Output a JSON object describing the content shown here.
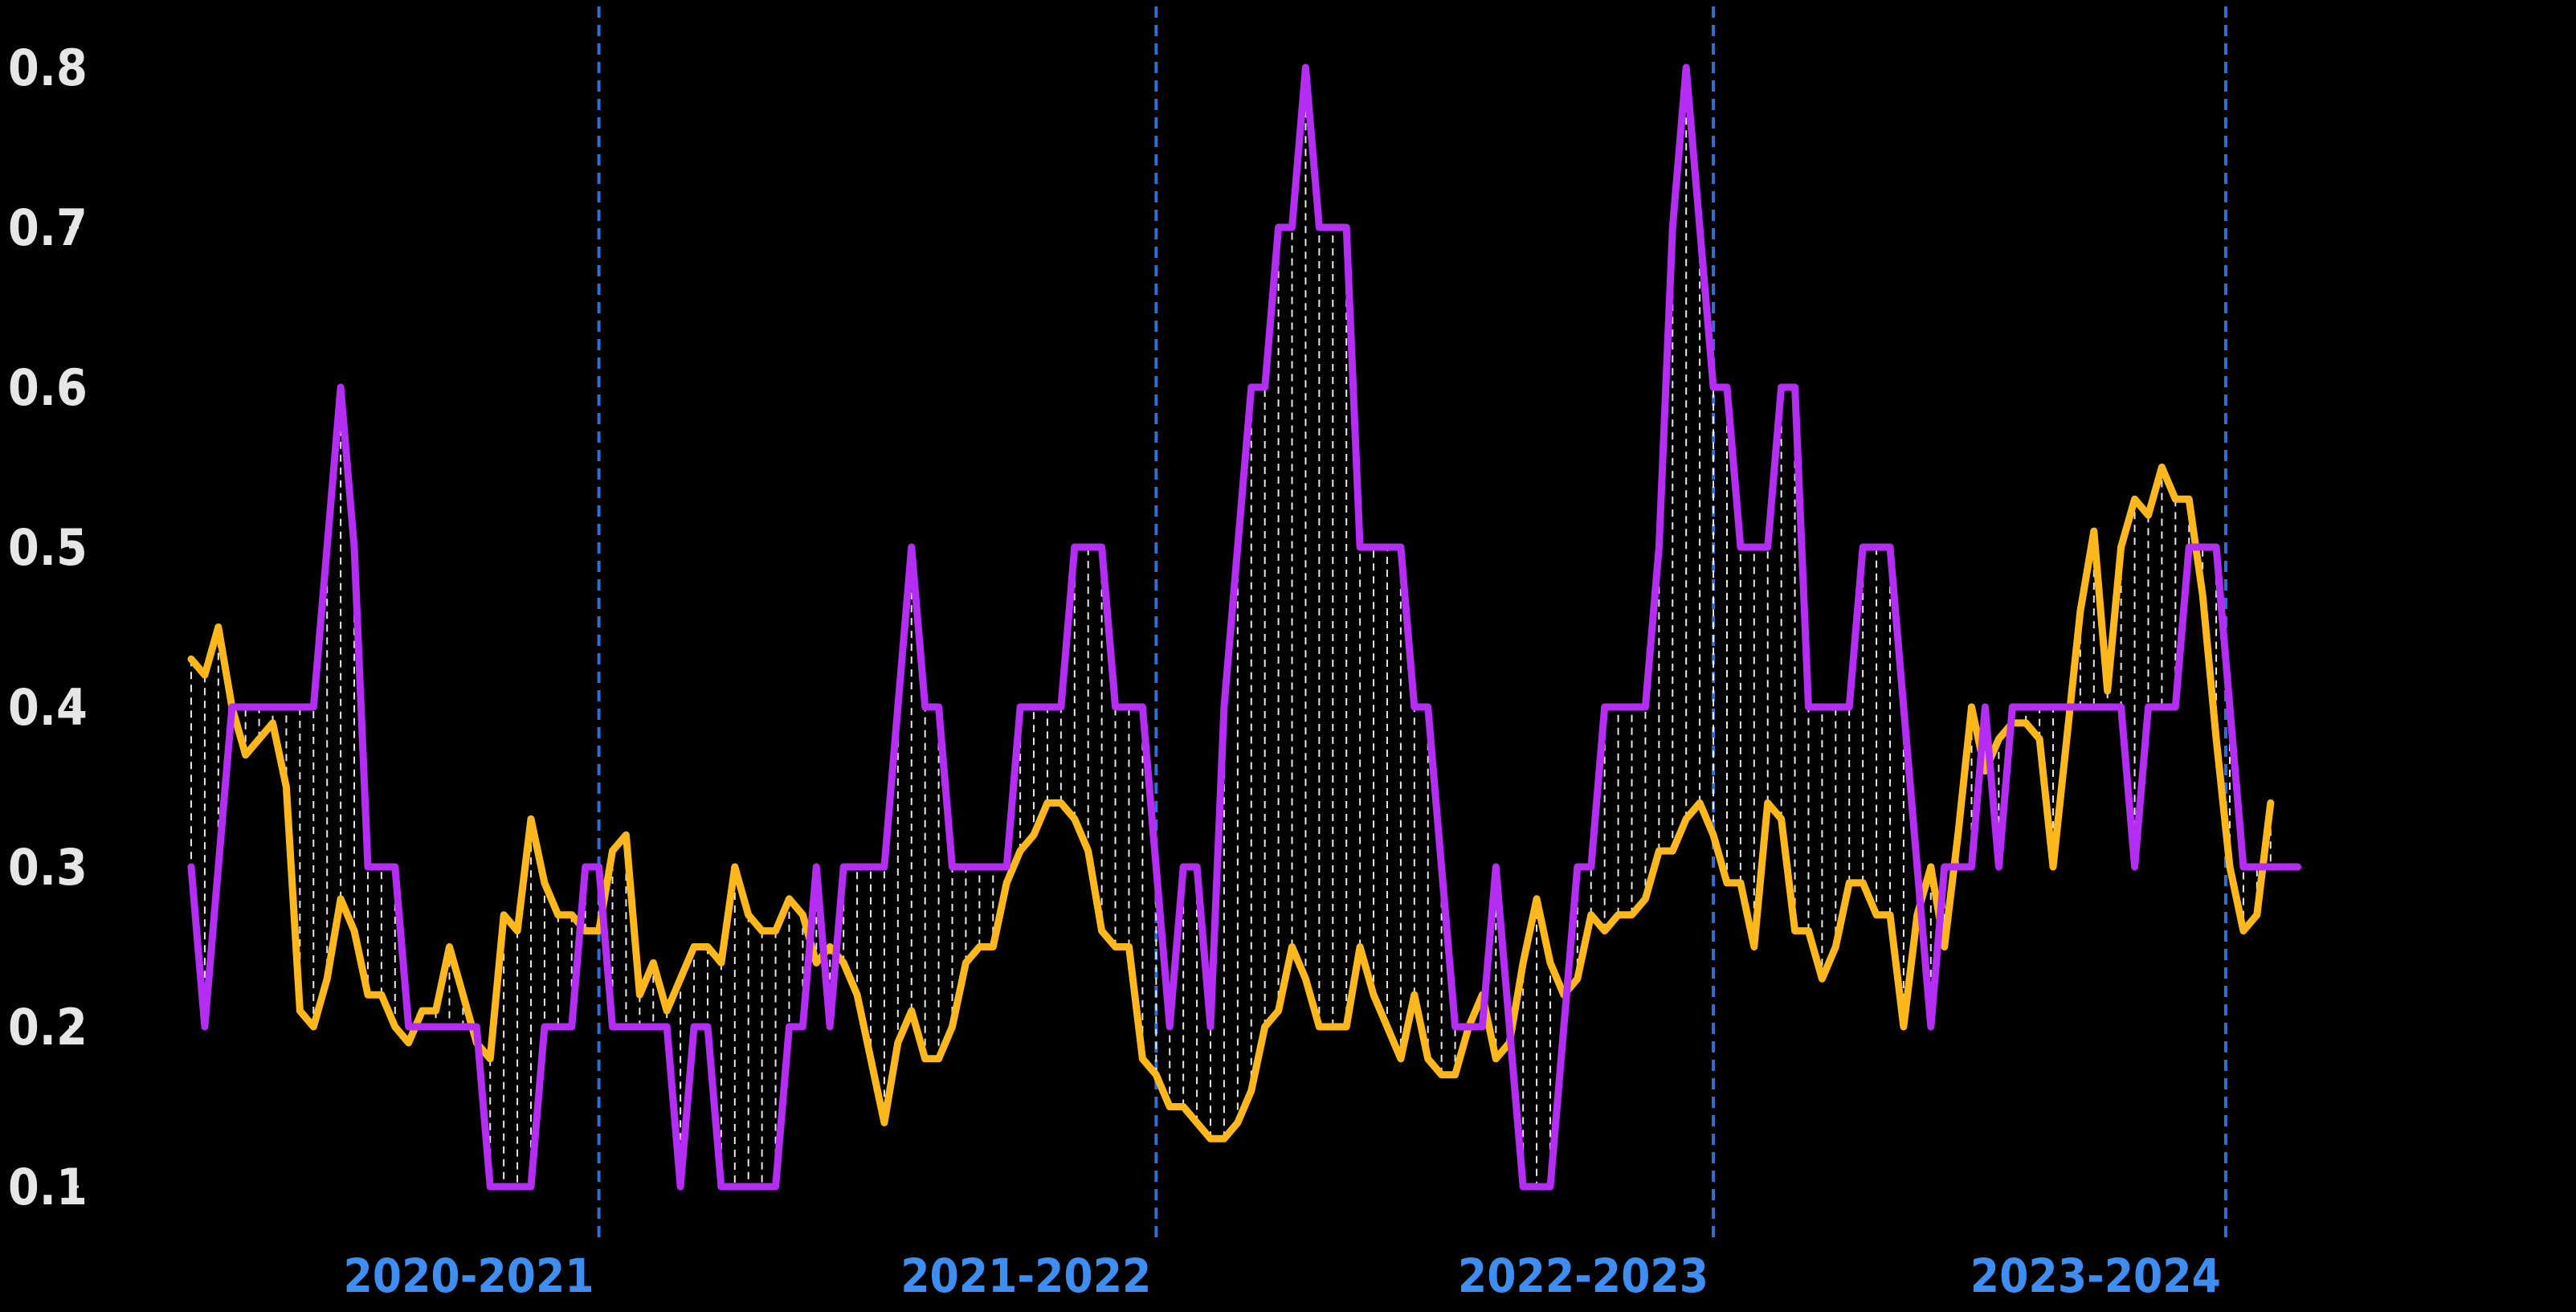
{
  "chart_data": {
    "type": "line",
    "title": "",
    "xlabel": "",
    "ylabel": "",
    "ylim": [
      0.07,
      0.83
    ],
    "yticks": [
      "0.1",
      "0.2",
      "0.3",
      "0.4",
      "0.5",
      "0.6",
      "0.7",
      "0.8"
    ],
    "grid": false,
    "legend": "none",
    "season_markers": [
      {
        "label": "2020-2021",
        "x": 30
      },
      {
        "label": "2021-2022",
        "x": 71
      },
      {
        "label": "2022-2023",
        "x": 112
      },
      {
        "label": "2023-2024",
        "x": 149.7
      }
    ],
    "x_start": 0,
    "x_end": 168,
    "series": [
      {
        "color": "#ffb81c",
        "values": [
          0.43,
          0.42,
          0.45,
          0.4,
          0.37,
          0.38,
          0.39,
          0.35,
          0.21,
          0.2,
          0.23,
          0.28,
          0.26,
          0.22,
          0.22,
          0.2,
          0.19,
          0.21,
          0.21,
          0.25,
          0.22,
          0.19,
          0.18,
          0.27,
          0.26,
          0.33,
          0.29,
          0.27,
          0.27,
          0.26,
          0.26,
          0.31,
          0.32,
          0.22,
          0.24,
          0.21,
          0.23,
          0.25,
          0.25,
          0.24,
          0.3,
          0.27,
          0.26,
          0.26,
          0.28,
          0.27,
          0.24,
          0.25,
          0.24,
          0.22,
          0.18,
          0.14,
          0.19,
          0.21,
          0.18,
          0.18,
          0.2,
          0.24,
          0.25,
          0.25,
          0.29,
          0.31,
          0.32,
          0.34,
          0.34,
          0.33,
          0.31,
          0.26,
          0.25,
          0.25,
          0.18,
          0.17,
          0.15,
          0.15,
          0.14,
          0.13,
          0.13,
          0.14,
          0.16,
          0.2,
          0.21,
          0.25,
          0.23,
          0.2,
          0.2,
          0.2,
          0.25,
          0.22,
          0.2,
          0.18,
          0.22,
          0.18,
          0.17,
          0.17,
          0.2,
          0.22,
          0.18,
          0.19,
          0.24,
          0.28,
          0.24,
          0.22,
          0.23,
          0.27,
          0.26,
          0.27,
          0.27,
          0.28,
          0.31,
          0.31,
          0.33,
          0.34,
          0.32,
          0.29,
          0.29,
          0.25,
          0.34,
          0.33,
          0.26,
          0.26,
          0.23,
          0.25,
          0.29,
          0.29,
          0.27,
          0.27,
          0.2,
          0.27,
          0.3,
          0.25,
          0.32,
          0.4,
          0.36,
          0.38,
          0.39,
          0.39,
          0.38,
          0.3,
          0.38,
          0.46,
          0.51,
          0.41,
          0.5,
          0.53,
          0.52,
          0.55,
          0.53,
          0.53,
          0.47,
          0.38,
          0.3,
          0.26,
          0.27,
          0.34
        ]
      },
      {
        "color": "#b42df2",
        "values": [
          0.3,
          0.2,
          0.3,
          0.4,
          0.4,
          0.4,
          0.4,
          0.4,
          0.4,
          0.4,
          0.5,
          0.6,
          0.5,
          0.3,
          0.3,
          0.3,
          0.2,
          0.2,
          0.2,
          0.2,
          0.2,
          0.2,
          0.1,
          0.1,
          0.1,
          0.1,
          0.2,
          0.2,
          0.2,
          0.3,
          0.3,
          0.2,
          0.2,
          0.2,
          0.2,
          0.2,
          0.1,
          0.2,
          0.2,
          0.1,
          0.1,
          0.1,
          0.1,
          0.1,
          0.2,
          0.2,
          0.3,
          0.2,
          0.3,
          0.3,
          0.3,
          0.3,
          0.4,
          0.5,
          0.4,
          0.4,
          0.3,
          0.3,
          0.3,
          0.3,
          0.3,
          0.4,
          0.4,
          0.4,
          0.4,
          0.5,
          0.5,
          0.5,
          0.4,
          0.4,
          0.4,
          0.3,
          0.2,
          0.3,
          0.3,
          0.2,
          0.4,
          0.5,
          0.6,
          0.6,
          0.7,
          0.7,
          0.8,
          0.7,
          0.7,
          0.7,
          0.5,
          0.5,
          0.5,
          0.5,
          0.4,
          0.4,
          0.3,
          0.2,
          0.2,
          0.2,
          0.3,
          0.2,
          0.1,
          0.1,
          0.1,
          0.2,
          0.3,
          0.3,
          0.4,
          0.4,
          0.4,
          0.4,
          0.5,
          0.7,
          0.8,
          0.7,
          0.6,
          0.6,
          0.5,
          0.5,
          0.5,
          0.6,
          0.6,
          0.4,
          0.4,
          0.4,
          0.4,
          0.5,
          0.5,
          0.5,
          0.4,
          0.3,
          0.2,
          0.3,
          0.3,
          0.3,
          0.4,
          0.3,
          0.4,
          0.4,
          0.4,
          0.4,
          0.4,
          0.4,
          0.4,
          0.4,
          0.4,
          0.3,
          0.4,
          0.4,
          0.4,
          0.5,
          0.5,
          0.5,
          0.4,
          0.3,
          0.3,
          0.3,
          0.3,
          0.3
        ]
      }
    ]
  },
  "colors": {
    "background": "#000000",
    "tick_text": "#e6e6e6",
    "season_text": "#3d8ef0",
    "season_line": "#2e6fd1",
    "gap_line": "#ffffff"
  }
}
